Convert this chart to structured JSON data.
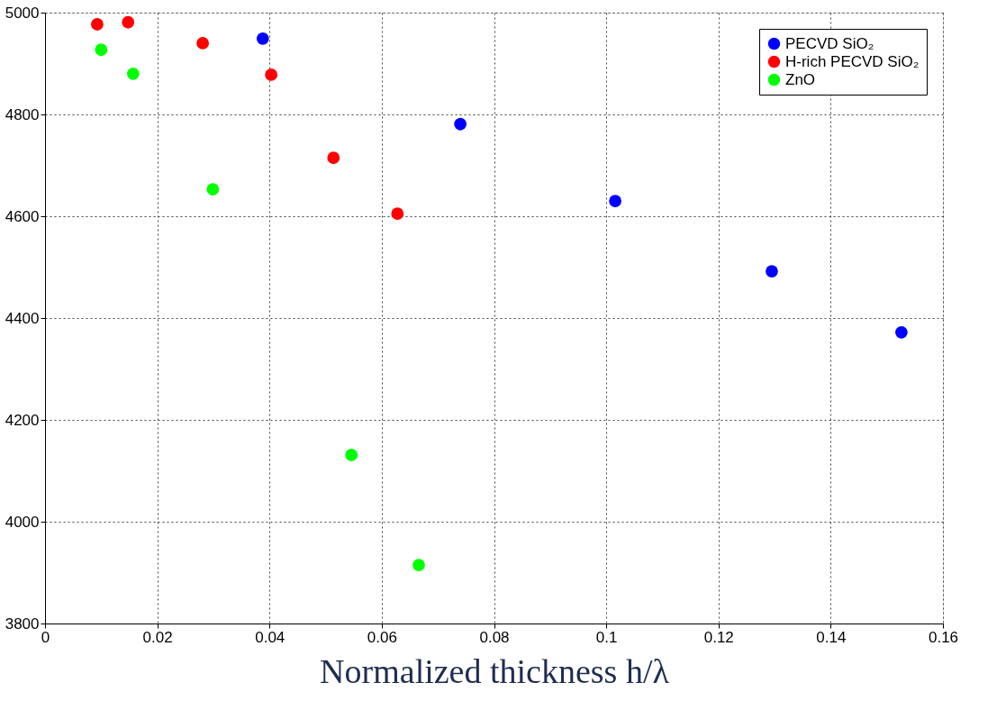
{
  "chart_data": {
    "type": "scatter",
    "xlabel": "Normalized thickness h/λ",
    "xlim": [
      0,
      0.16
    ],
    "xticks": [
      0,
      0.02,
      0.04,
      0.06,
      0.08,
      0.1,
      0.12,
      0.14,
      0.16
    ],
    "ylim": [
      3800,
      5000
    ],
    "yticks": [
      3800,
      4000,
      4200,
      4400,
      4600,
      4800,
      5000
    ],
    "grid": true,
    "legend": "top right",
    "marker": "circle",
    "series": [
      {
        "name": "PECVD SiO₂",
        "color": "#0000ff",
        "x": [
          0.0388,
          0.074,
          0.1016,
          0.1295,
          0.1526
        ],
        "values": [
          4949,
          4781,
          4630,
          4492,
          4372
        ]
      },
      {
        "name": "H-rich PECVD SiO₂",
        "color": "#ff0000",
        "x": [
          0.0093,
          0.0148,
          0.0281,
          0.0403,
          0.0514,
          0.0628
        ],
        "values": [
          4977,
          4981,
          4940,
          4878,
          4715,
          4605
        ]
      },
      {
        "name": "ZnO",
        "color": "#00ff00",
        "x": [
          0.01,
          0.0157,
          0.0299,
          0.0546,
          0.0666
        ],
        "values": [
          4927,
          4880,
          4653,
          4131,
          3915
        ]
      }
    ]
  }
}
